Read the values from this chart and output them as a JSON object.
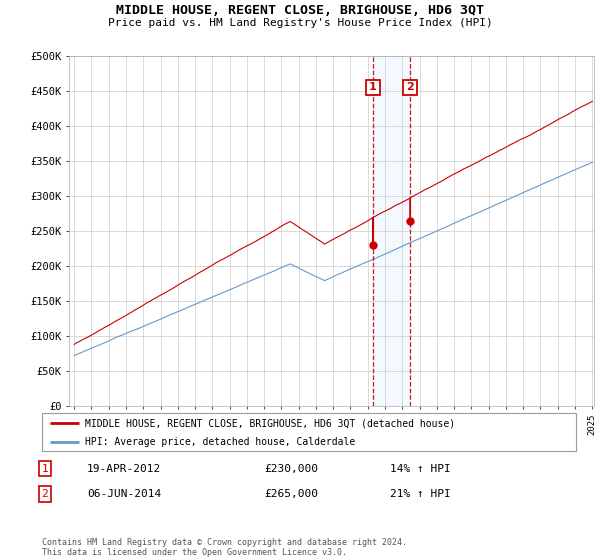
{
  "title": "MIDDLE HOUSE, REGENT CLOSE, BRIGHOUSE, HD6 3QT",
  "subtitle": "Price paid vs. HM Land Registry's House Price Index (HPI)",
  "legend_label_red": "MIDDLE HOUSE, REGENT CLOSE, BRIGHOUSE, HD6 3QT (detached house)",
  "legend_label_blue": "HPI: Average price, detached house, Calderdale",
  "transaction1_date": "19-APR-2012",
  "transaction1_price": "£230,000",
  "transaction1_hpi": "14% ↑ HPI",
  "transaction2_date": "06-JUN-2014",
  "transaction2_price": "£265,000",
  "transaction2_hpi": "21% ↑ HPI",
  "footer": "Contains HM Land Registry data © Crown copyright and database right 2024.\nThis data is licensed under the Open Government Licence v3.0.",
  "red_color": "#cc0000",
  "blue_color": "#6699cc",
  "background_color": "#ffffff",
  "grid_color": "#cccccc",
  "ylim": [
    0,
    500000
  ],
  "yticks": [
    0,
    50000,
    100000,
    150000,
    200000,
    250000,
    300000,
    350000,
    400000,
    450000,
    500000
  ],
  "ytick_labels": [
    "£0",
    "£50K",
    "£100K",
    "£150K",
    "£200K",
    "£250K",
    "£300K",
    "£350K",
    "£400K",
    "£450K",
    "£500K"
  ],
  "start_year": 1995,
  "end_year": 2025,
  "transaction1_year": 2012.3,
  "transaction2_year": 2014.45,
  "transaction1_price_val": 230000,
  "transaction2_price_val": 265000
}
